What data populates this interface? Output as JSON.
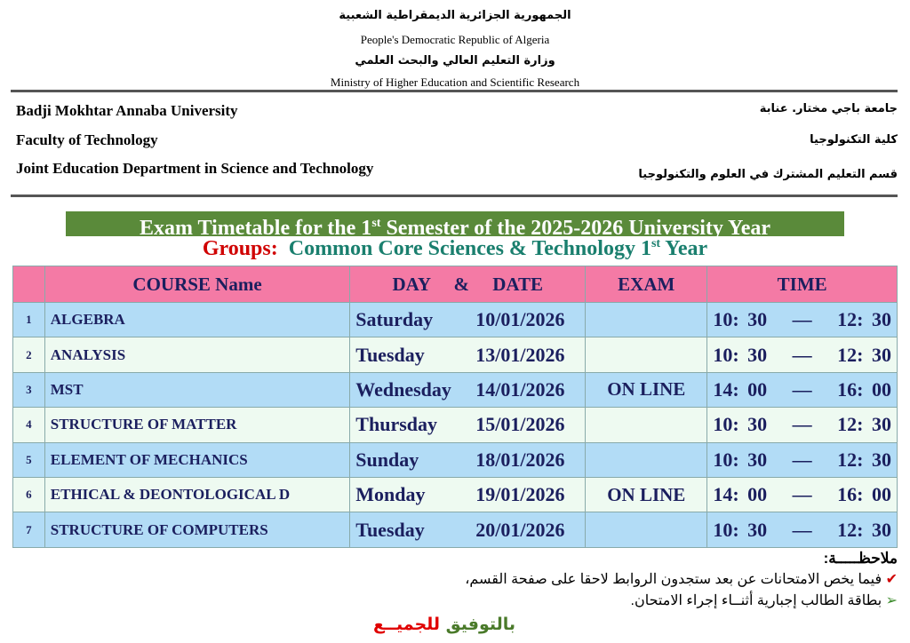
{
  "header": {
    "country_ar": "الجمهورية الجزائرية الديمقراطية الشعبية",
    "country_en": "People's Democratic Republic of Algeria",
    "ministry_ar": "وزارة التعليم العالي والبحث العلمي",
    "ministry_en": "Ministry of Higher Education and Scientific Research",
    "university_en": "Badji Mokhtar Annaba University",
    "university_ar": "جامعة باجي مختار. عنابة",
    "faculty_en": "Faculty of Technology",
    "faculty_ar": "كلية التكنولوجيا",
    "department_en": "Joint Education Department in Science and Technology",
    "department_ar": "قسم التعليم المشترك في العلوم والتكنولوجيا"
  },
  "title": {
    "pre": "Exam Timetable for the 1",
    "sup": "st",
    "post": "  Semester of the 2025-2026 University Year"
  },
  "groups": {
    "label": "Groups:",
    "value_pre": "Common Core Sciences & Technology  1",
    "sup": "st",
    "value_post": " Year",
    "label_color": "#d00000",
    "value_color": "#1a7f6e"
  },
  "table": {
    "headers": [
      "",
      "COURSE Name",
      "DAY     &     DATE",
      "EXAM",
      "TIME"
    ],
    "rows": [
      {
        "n": "1",
        "course": "ALGEBRA",
        "day": "Saturday",
        "date": "10/01/2026",
        "exam": "",
        "time": "10: 30   —   12: 30"
      },
      {
        "n": "2",
        "course": "ANALYSIS",
        "day": "Tuesday",
        "date": "13/01/2026",
        "exam": "",
        "time": "10: 30   —   12: 30"
      },
      {
        "n": "3",
        "course": "MST",
        "day": "Wednesday",
        "date": "14/01/2026",
        "exam": "ON LINE",
        "time": "14: 00   —   16: 00"
      },
      {
        "n": "4",
        "course": "STRUCTURE OF MATTER",
        "day": "Thursday",
        "date": "15/01/2026",
        "exam": "",
        "time": "10: 30   —   12: 30"
      },
      {
        "n": "5",
        "course": "ELEMENT OF MECHANICS",
        "day": "Sunday",
        "date": "18/01/2026",
        "exam": "",
        "time": "10: 30   —   12: 30"
      },
      {
        "n": "6",
        "course": "ETHICAL & DEONTOLOGICAL D",
        "day": "Monday",
        "date": "19/01/2026",
        "exam": "ON LINE",
        "time": "14: 00   —   16: 00"
      },
      {
        "n": "7",
        "course": "STRUCTURE OF COMPUTERS",
        "day": "Tuesday",
        "date": "20/01/2026",
        "exam": "",
        "time": "10: 30   —   12: 30"
      }
    ]
  },
  "notes": {
    "heading": "ملاحظـــــة:",
    "items": [
      "فيما يخص الامتحانات عن بعد ستجدون الروابط لاحقا على صفحة القسم،",
      "بطاقة الطالب إجبارية أثنــاء إجراء الامتحان."
    ],
    "closing_1": "بالتوفيق",
    "closing_2": "للجميــع"
  },
  "colors": {
    "title_bg": "#5a8a3a",
    "header_bg": "#f47aa5",
    "row_blue": "#b2dcf6",
    "row_light": "#eefaf1",
    "check": "#d00000",
    "arrow": "#3a8a2a"
  }
}
